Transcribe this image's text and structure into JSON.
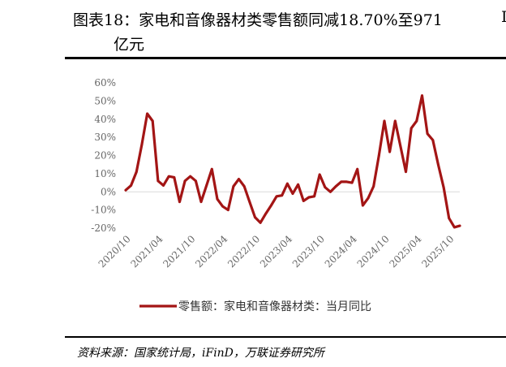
{
  "title": {
    "line1": "图表18：家电和音像器材类零售额同减18.70%至971",
    "line2": "亿元",
    "side_mark": "I"
  },
  "source": "资料来源：国家统计局，iFinD，万联证券研究所",
  "colors": {
    "series": "#a31515",
    "axis": "#d9d9d9",
    "rule": "#000000"
  },
  "chart_data": {
    "type": "line",
    "title": "",
    "xlabel": "",
    "ylabel": "",
    "ylim": [
      -20,
      60
    ],
    "y_ticks": [
      "60%",
      "50%",
      "40%",
      "30%",
      "20%",
      "10%",
      "0%",
      "-10%",
      "-20%"
    ],
    "x_tick_labels": [
      "2020/10",
      "2021/04",
      "2021/10",
      "2022/04",
      "2022/10",
      "2023/04",
      "2023/10",
      "2024/04",
      "2024/10",
      "2025/04",
      "2025/10"
    ],
    "legend": "top-bottom-center",
    "grid": false,
    "series": [
      {
        "name": "零售额：家电和音像器材类：当月同比",
        "x": [
          "2020/09",
          "2020/10",
          "2020/11",
          "2020/12",
          "2021/01",
          "2021/02",
          "2021/03",
          "2021/04",
          "2021/05",
          "2021/06",
          "2021/07",
          "2021/08",
          "2021/09",
          "2021/10",
          "2021/11",
          "2021/12",
          "2022/01",
          "2022/02",
          "2022/03",
          "2022/04",
          "2022/05",
          "2022/06",
          "2022/07",
          "2022/08",
          "2022/09",
          "2022/10",
          "2022/11",
          "2022/12",
          "2023/01",
          "2023/02",
          "2023/03",
          "2023/04",
          "2023/05",
          "2023/06",
          "2023/07",
          "2023/08",
          "2023/09",
          "2023/10",
          "2023/11",
          "2023/12",
          "2024/01",
          "2024/02",
          "2024/03",
          "2024/04",
          "2024/05",
          "2024/06",
          "2024/07",
          "2024/08",
          "2024/09",
          "2024/10",
          "2024/11",
          "2024/12",
          "2025/01",
          "2025/02",
          "2025/03",
          "2025/04",
          "2025/05",
          "2025/06",
          "2025/07",
          "2025/08",
          "2025/09",
          "2025/10",
          "2025/11"
        ],
        "values": [
          0.9,
          3.5,
          11.0,
          26.0,
          43.0,
          39.0,
          6.0,
          3.5,
          8.5,
          8.0,
          -5.5,
          6.0,
          8.5,
          6.0,
          -5.5,
          3.5,
          12.5,
          -4.0,
          -8.0,
          -10.0,
          3.0,
          7.0,
          3.0,
          -5.5,
          -14.0,
          -17.0,
          -12.0,
          -7.5,
          -2.5,
          -2.0,
          4.5,
          -1.0,
          4.0,
          -5.0,
          -3.0,
          -2.5,
          9.5,
          2.5,
          0.0,
          3.0,
          5.5,
          5.5,
          5.0,
          12.5,
          -7.5,
          -3.5,
          3.0,
          20.0,
          39.0,
          22.0,
          39.0,
          25.0,
          11.0,
          35.0,
          39.0,
          53.0,
          32.0,
          28.5,
          15.0,
          2.5,
          -14.5,
          -19.5,
          -18.7
        ]
      }
    ]
  }
}
